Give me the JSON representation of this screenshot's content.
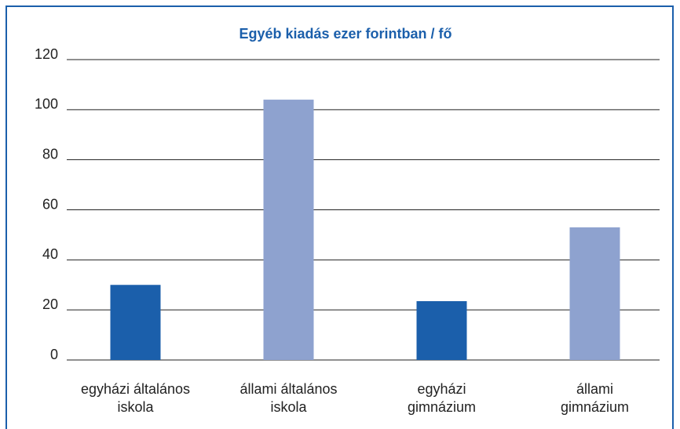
{
  "chart_data": {
    "type": "bar",
    "title": "Egyéb kiadás ezer forintban / fő",
    "categories": [
      [
        "egyházi általános",
        "iskola"
      ],
      [
        "állami általános",
        "iskola"
      ],
      [
        "egyházi",
        "gimnázium"
      ],
      [
        "állami",
        "gimnázium"
      ]
    ],
    "values": [
      30,
      104,
      23.5,
      53
    ],
    "colors": [
      "#1b5fab",
      "#8ea2cf",
      "#1b5fab",
      "#8ea2cf"
    ],
    "ylim": [
      0,
      120
    ],
    "yticks": [
      0,
      20,
      40,
      60,
      80,
      100,
      120
    ],
    "grid": true
  }
}
